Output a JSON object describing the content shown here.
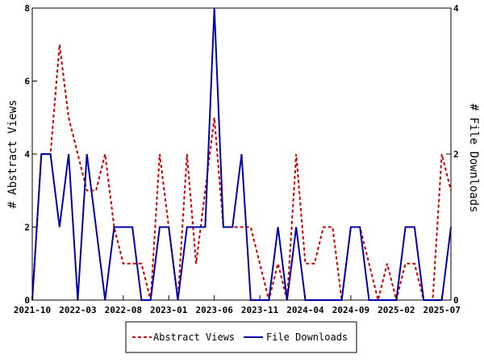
{
  "chart_data": {
    "type": "line",
    "xlabel": "",
    "x_ticks": [
      "2021-10",
      "2022-03",
      "2022-08",
      "2023-01",
      "2023-06",
      "2023-11",
      "2024-04",
      "2024-09",
      "2025-02",
      "2025-07"
    ],
    "y_left": {
      "label": "# Abstract Views",
      "lim": [
        0,
        8
      ],
      "ticks": [
        "0",
        "2",
        "4",
        "6",
        "8"
      ]
    },
    "y_right": {
      "label": "# File Downloads",
      "lim": [
        0,
        4
      ],
      "ticks": [
        "0",
        "2",
        "4"
      ]
    },
    "x_range": [
      "2021-10",
      "2025-08"
    ],
    "legend_position": "bottom-center",
    "grid": false,
    "series": [
      {
        "name": "Abstract Views",
        "axis": "left",
        "color": "#cc0000",
        "style": "dashed",
        "x": [
          "2021-10",
          "2021-11",
          "2021-12",
          "2022-01",
          "2022-02",
          "2022-03",
          "2022-04",
          "2022-05",
          "2022-06",
          "2022-07",
          "2022-08",
          "2022-09",
          "2022-10",
          "2022-11",
          "2022-12",
          "2023-01",
          "2023-02",
          "2023-03",
          "2023-04",
          "2023-05",
          "2023-06",
          "2023-07",
          "2023-08",
          "2023-09",
          "2023-10",
          "2023-11",
          "2023-12",
          "2024-01",
          "2024-02",
          "2024-03",
          "2024-04",
          "2024-05",
          "2024-06",
          "2024-07",
          "2024-08",
          "2024-09",
          "2024-10",
          "2024-11",
          "2024-12",
          "2025-01",
          "2025-02",
          "2025-03",
          "2025-04",
          "2025-05",
          "2025-06",
          "2025-07",
          "2025-08"
        ],
        "values": [
          0,
          4,
          4,
          7,
          5,
          4,
          3,
          3,
          4,
          2,
          1,
          1,
          1,
          0,
          4,
          2,
          0,
          4,
          1,
          3,
          5,
          2,
          2,
          2,
          2,
          1,
          0,
          1,
          0,
          4,
          1,
          1,
          2,
          2,
          0,
          2,
          2,
          1,
          0,
          1,
          0,
          1,
          1,
          0,
          0,
          4,
          3
        ]
      },
      {
        "name": "File Downloads",
        "axis": "right",
        "color": "#0000aa",
        "style": "solid",
        "x": [
          "2021-10",
          "2021-11",
          "2021-12",
          "2022-01",
          "2022-02",
          "2022-03",
          "2022-04",
          "2022-05",
          "2022-06",
          "2022-07",
          "2022-08",
          "2022-09",
          "2022-10",
          "2022-11",
          "2022-12",
          "2023-01",
          "2023-02",
          "2023-03",
          "2023-04",
          "2023-05",
          "2023-06",
          "2023-07",
          "2023-08",
          "2023-09",
          "2023-10",
          "2023-11",
          "2023-12",
          "2024-01",
          "2024-02",
          "2024-03",
          "2024-04",
          "2024-05",
          "2024-06",
          "2024-07",
          "2024-08",
          "2024-09",
          "2024-10",
          "2024-11",
          "2024-12",
          "2025-01",
          "2025-02",
          "2025-03",
          "2025-04",
          "2025-05",
          "2025-06",
          "2025-07",
          "2025-08"
        ],
        "values": [
          0,
          2,
          2,
          1,
          2,
          0,
          2,
          1,
          0,
          1,
          1,
          1,
          0,
          0,
          1,
          1,
          0,
          1,
          1,
          1,
          4,
          1,
          1,
          2,
          0,
          0,
          0,
          1,
          0,
          1,
          0,
          0,
          0,
          0,
          0,
          1,
          1,
          0,
          0,
          0,
          0,
          1,
          1,
          0,
          0,
          0,
          1
        ]
      }
    ]
  }
}
